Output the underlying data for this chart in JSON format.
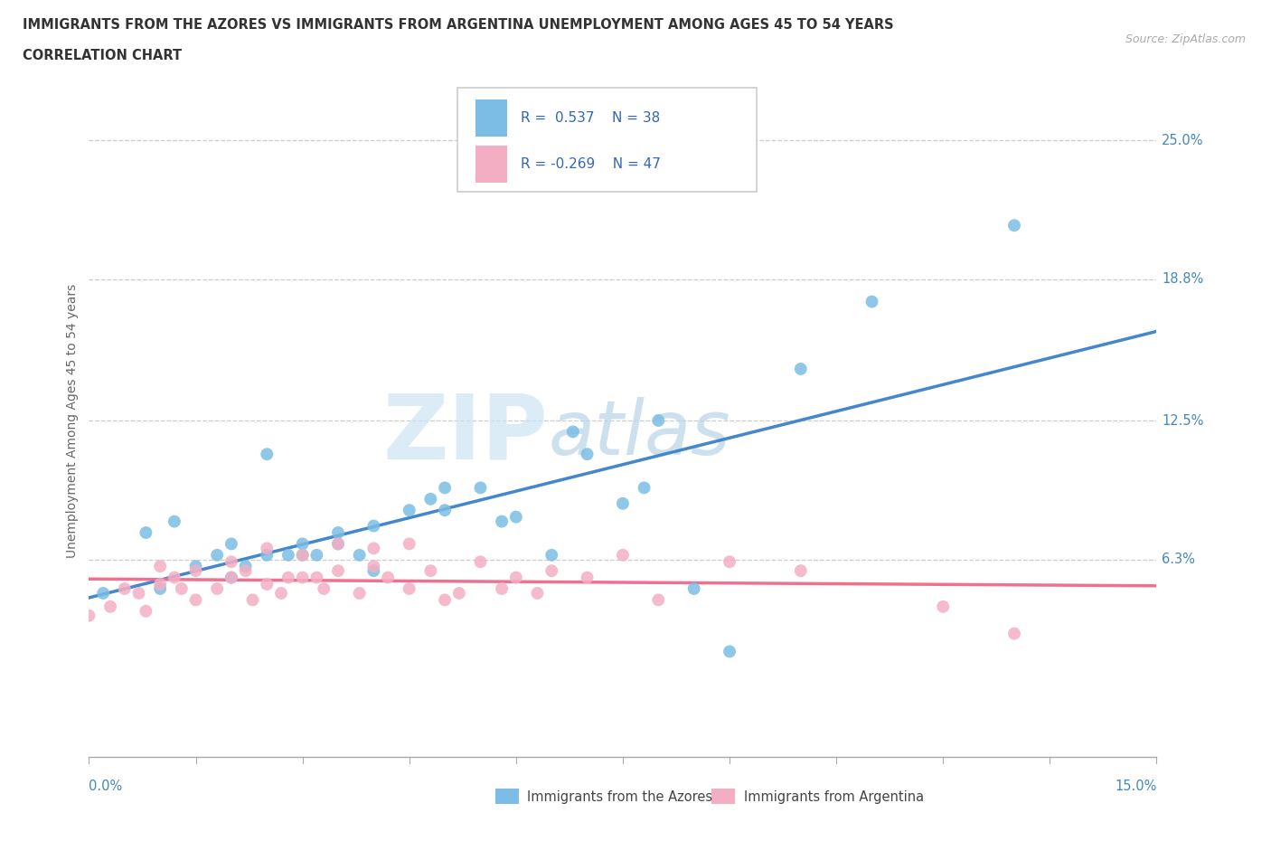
{
  "title_line1": "IMMIGRANTS FROM THE AZORES VS IMMIGRANTS FROM ARGENTINA UNEMPLOYMENT AMONG AGES 45 TO 54 YEARS",
  "title_line2": "CORRELATION CHART",
  "source": "Source: ZipAtlas.com",
  "ylabel": "Unemployment Among Ages 45 to 54 years",
  "ytick_labels": [
    "25.0%",
    "18.8%",
    "12.5%",
    "6.3%"
  ],
  "ytick_values": [
    0.25,
    0.188,
    0.125,
    0.063
  ],
  "xmin": 0.0,
  "xmax": 0.15,
  "ymin": -0.025,
  "ymax": 0.275,
  "azores_color": "#7bbde4",
  "argentina_color": "#f4aec4",
  "azores_line_color": "#4488cc",
  "argentina_line_color": "#f07090",
  "legend_label_azores": "Immigrants from the Azores",
  "legend_label_argentina": "Immigrants from Argentina",
  "azores_R": "0.537",
  "azores_N": "38",
  "argentina_R": "-0.269",
  "argentina_N": "47",
  "legend_text_color": "#3366bb",
  "watermark_zip": "ZIP",
  "watermark_atlas": "atlas",
  "azores_x": [
    0.002,
    0.008,
    0.01,
    0.012,
    0.015,
    0.018,
    0.02,
    0.02,
    0.022,
    0.025,
    0.025,
    0.028,
    0.03,
    0.03,
    0.032,
    0.035,
    0.035,
    0.038,
    0.04,
    0.04,
    0.045,
    0.048,
    0.05,
    0.05,
    0.055,
    0.058,
    0.06,
    0.065,
    0.068,
    0.07,
    0.075,
    0.078,
    0.08,
    0.085,
    0.09,
    0.1,
    0.11,
    0.13
  ],
  "azores_y": [
    0.048,
    0.075,
    0.05,
    0.08,
    0.06,
    0.065,
    0.055,
    0.07,
    0.06,
    0.11,
    0.065,
    0.065,
    0.065,
    0.07,
    0.065,
    0.07,
    0.075,
    0.065,
    0.058,
    0.078,
    0.085,
    0.09,
    0.085,
    0.095,
    0.095,
    0.08,
    0.082,
    0.065,
    0.12,
    0.11,
    0.088,
    0.095,
    0.125,
    0.05,
    0.022,
    0.148,
    0.178,
    0.212
  ],
  "argentina_x": [
    0.0,
    0.003,
    0.005,
    0.007,
    0.008,
    0.01,
    0.01,
    0.012,
    0.013,
    0.015,
    0.015,
    0.018,
    0.02,
    0.02,
    0.022,
    0.023,
    0.025,
    0.025,
    0.027,
    0.028,
    0.03,
    0.03,
    0.032,
    0.033,
    0.035,
    0.035,
    0.038,
    0.04,
    0.04,
    0.042,
    0.045,
    0.045,
    0.048,
    0.05,
    0.052,
    0.055,
    0.058,
    0.06,
    0.063,
    0.065,
    0.07,
    0.075,
    0.08,
    0.09,
    0.1,
    0.12,
    0.13
  ],
  "argentina_y": [
    0.038,
    0.042,
    0.05,
    0.048,
    0.04,
    0.052,
    0.06,
    0.055,
    0.05,
    0.045,
    0.058,
    0.05,
    0.055,
    0.062,
    0.058,
    0.045,
    0.052,
    0.068,
    0.048,
    0.055,
    0.055,
    0.065,
    0.055,
    0.05,
    0.058,
    0.07,
    0.048,
    0.06,
    0.068,
    0.055,
    0.05,
    0.07,
    0.058,
    0.045,
    0.048,
    0.062,
    0.05,
    0.055,
    0.048,
    0.058,
    0.055,
    0.065,
    0.045,
    0.062,
    0.058,
    0.042,
    0.03
  ]
}
